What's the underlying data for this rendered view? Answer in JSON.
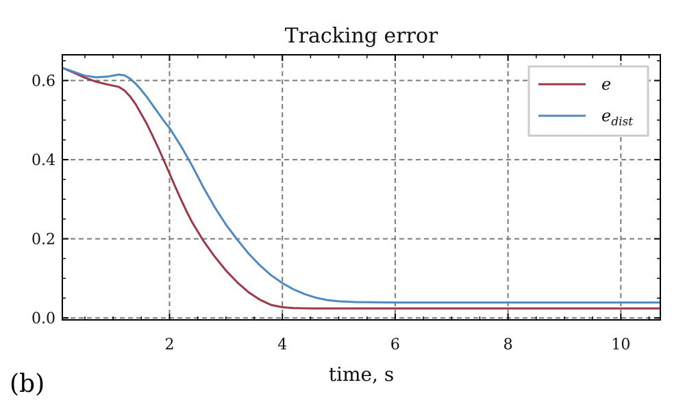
{
  "panel_label": "(b)",
  "chart_data": {
    "type": "line",
    "title": "Tracking error",
    "xlabel": "time, s",
    "ylabel": "",
    "xlim": [
      0.1,
      10.7
    ],
    "ylim": [
      -0.005,
      0.665
    ],
    "xticks": [
      2,
      4,
      6,
      8,
      10
    ],
    "yticks": [
      0.0,
      0.2,
      0.4,
      0.6
    ],
    "grid": true,
    "grid_style": "dashed",
    "legend_position": "top-right",
    "series": [
      {
        "name": "e",
        "color": "#9a3a47",
        "x": [
          0.1,
          0.3,
          0.5,
          0.7,
          0.9,
          1.1,
          1.2,
          1.3,
          1.4,
          1.5,
          1.6,
          1.7,
          1.8,
          1.9,
          2.0,
          2.1,
          2.2,
          2.3,
          2.4,
          2.6,
          2.8,
          3.0,
          3.2,
          3.4,
          3.6,
          3.8,
          4.0,
          4.2,
          4.5,
          5.0,
          6.0,
          8.0,
          10.7
        ],
        "y": [
          0.632,
          0.62,
          0.607,
          0.597,
          0.59,
          0.584,
          0.575,
          0.56,
          0.54,
          0.515,
          0.49,
          0.46,
          0.43,
          0.398,
          0.365,
          0.332,
          0.3,
          0.27,
          0.242,
          0.195,
          0.155,
          0.12,
          0.09,
          0.065,
          0.046,
          0.033,
          0.027,
          0.025,
          0.024,
          0.024,
          0.024,
          0.024,
          0.024
        ]
      },
      {
        "name": "e_dist",
        "color": "#5088c0",
        "x": [
          0.1,
          0.3,
          0.5,
          0.7,
          0.9,
          1.1,
          1.2,
          1.3,
          1.4,
          1.5,
          1.6,
          1.7,
          1.8,
          1.9,
          2.0,
          2.2,
          2.4,
          2.6,
          2.8,
          3.0,
          3.2,
          3.4,
          3.6,
          3.8,
          4.0,
          4.2,
          4.4,
          4.6,
          4.8,
          5.0,
          5.3,
          6.0,
          8.0,
          10.7
        ],
        "y": [
          0.632,
          0.622,
          0.612,
          0.608,
          0.61,
          0.615,
          0.613,
          0.605,
          0.592,
          0.576,
          0.558,
          0.538,
          0.518,
          0.498,
          0.48,
          0.435,
          0.385,
          0.33,
          0.28,
          0.236,
          0.198,
          0.163,
          0.133,
          0.108,
          0.088,
          0.072,
          0.06,
          0.051,
          0.045,
          0.042,
          0.04,
          0.039,
          0.039,
          0.039
        ]
      }
    ]
  }
}
